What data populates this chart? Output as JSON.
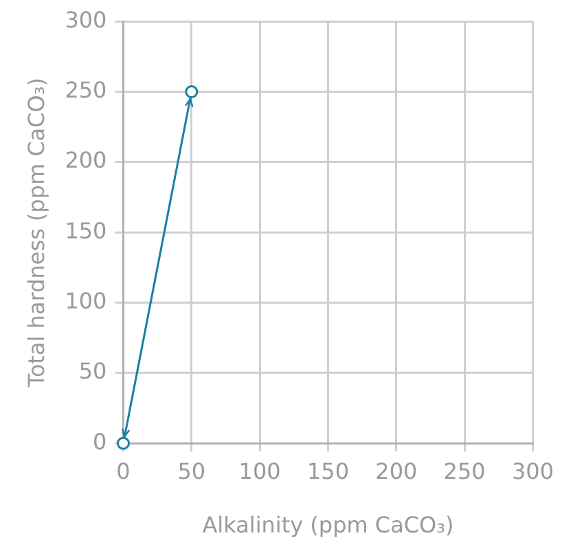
{
  "chart_data": {
    "type": "line",
    "xlabel": "Alkalinity (ppm CaCO₃)",
    "ylabel": "Total hardness (ppm CaCO₃)",
    "x": [
      0,
      50
    ],
    "series": [
      {
        "color": "#1a7fa3",
        "values": [
          0,
          250
        ]
      }
    ],
    "xlim": [
      0,
      300
    ],
    "xticks": [
      0,
      50,
      100,
      150,
      200,
      250,
      300
    ],
    "ylim": [
      0,
      300
    ],
    "yticks": [
      0,
      50,
      100,
      150,
      200,
      250,
      300
    ],
    "grid": true,
    "legend": false,
    "marker": "circle",
    "line_style": "solid"
  }
}
